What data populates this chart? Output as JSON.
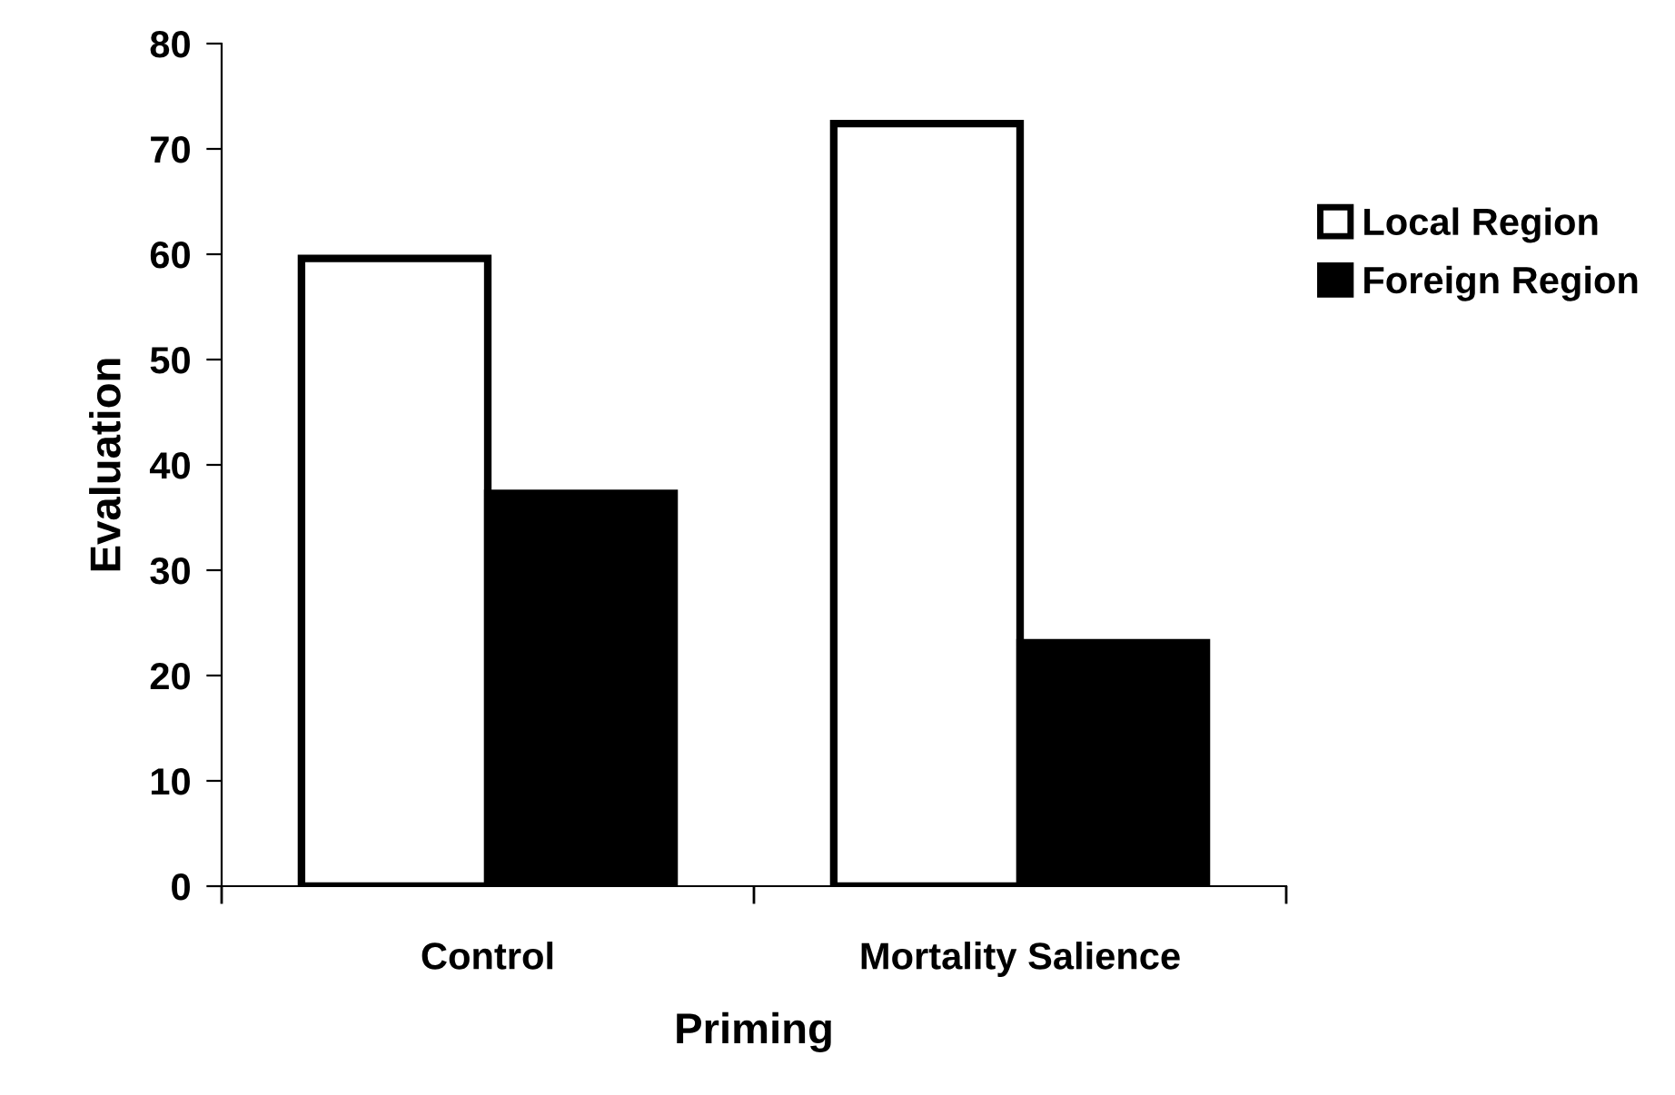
{
  "chart_data": {
    "type": "bar",
    "xlabel": "Priming",
    "ylabel": "Evaluation",
    "categories": [
      "Control",
      "Mortality Salience"
    ],
    "series": [
      {
        "name": "Local Region",
        "color": "#ffffff",
        "values": [
          59.6,
          72.4
        ]
      },
      {
        "name": "Foreign Region",
        "color": "#000000",
        "values": [
          37.3,
          23.1
        ]
      }
    ],
    "ylim": [
      0,
      80
    ],
    "yticks": [
      0,
      10,
      20,
      30,
      40,
      50,
      60,
      70,
      80
    ],
    "grid": false,
    "legend": "right"
  }
}
